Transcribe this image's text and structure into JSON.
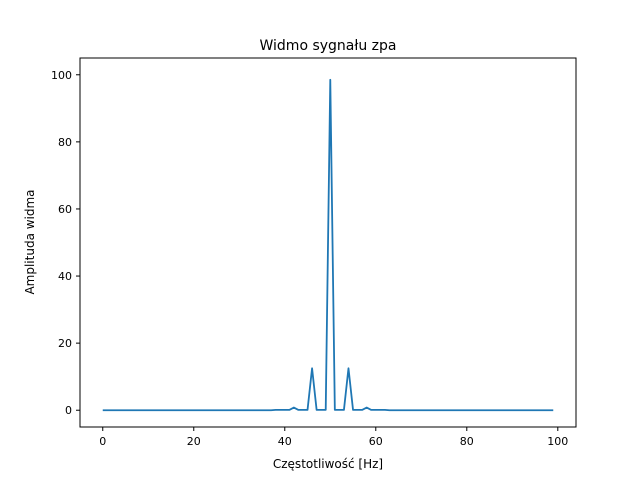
{
  "chart_data": {
    "type": "line",
    "title": "Widmo sygnału zpa",
    "xlabel": "Częstotliwość [Hz]",
    "ylabel": "Amplituda widma",
    "xlim": [
      -5,
      104
    ],
    "ylim": [
      -5,
      105
    ],
    "xticks": [
      0,
      20,
      40,
      60,
      80,
      100
    ],
    "yticks": [
      0,
      20,
      40,
      60,
      80,
      100
    ],
    "grid": false,
    "series": [
      {
        "color": "#1f77b4",
        "x": [
          0,
          1,
          2,
          3,
          4,
          5,
          6,
          7,
          8,
          9,
          10,
          11,
          12,
          13,
          14,
          15,
          16,
          17,
          18,
          19,
          20,
          21,
          22,
          23,
          24,
          25,
          26,
          27,
          28,
          29,
          30,
          31,
          32,
          33,
          34,
          35,
          36,
          37,
          38,
          39,
          40,
          41,
          42,
          43,
          44,
          45,
          46,
          47,
          48,
          49,
          50,
          51,
          52,
          53,
          54,
          55,
          56,
          57,
          58,
          59,
          60,
          61,
          62,
          63,
          64,
          65,
          66,
          67,
          68,
          69,
          70,
          71,
          72,
          73,
          74,
          75,
          76,
          77,
          78,
          79,
          80,
          81,
          82,
          83,
          84,
          85,
          86,
          87,
          88,
          89,
          90,
          91,
          92,
          93,
          94,
          95,
          96,
          97,
          98,
          99
        ],
        "y": [
          0,
          0,
          0,
          0,
          0,
          0,
          0,
          0,
          0,
          0,
          0,
          0,
          0,
          0,
          0,
          0,
          0,
          0,
          0,
          0,
          0,
          0,
          0,
          0,
          0,
          0,
          0,
          0,
          0,
          0,
          0,
          0,
          0,
          0,
          0,
          0,
          0,
          0,
          0.1,
          0.1,
          0.1,
          0.1,
          0.8,
          0.1,
          0.1,
          0.1,
          12.5,
          0.1,
          0.1,
          0.1,
          98.5,
          0.1,
          0.1,
          0.1,
          12.5,
          0.1,
          0.1,
          0.1,
          0.8,
          0.1,
          0.1,
          0.1,
          0.1,
          0,
          0,
          0,
          0,
          0,
          0,
          0,
          0,
          0,
          0,
          0,
          0,
          0,
          0,
          0,
          0,
          0,
          0,
          0,
          0,
          0,
          0,
          0,
          0,
          0,
          0,
          0,
          0,
          0,
          0,
          0,
          0,
          0,
          0,
          0,
          0,
          0
        ]
      }
    ]
  }
}
